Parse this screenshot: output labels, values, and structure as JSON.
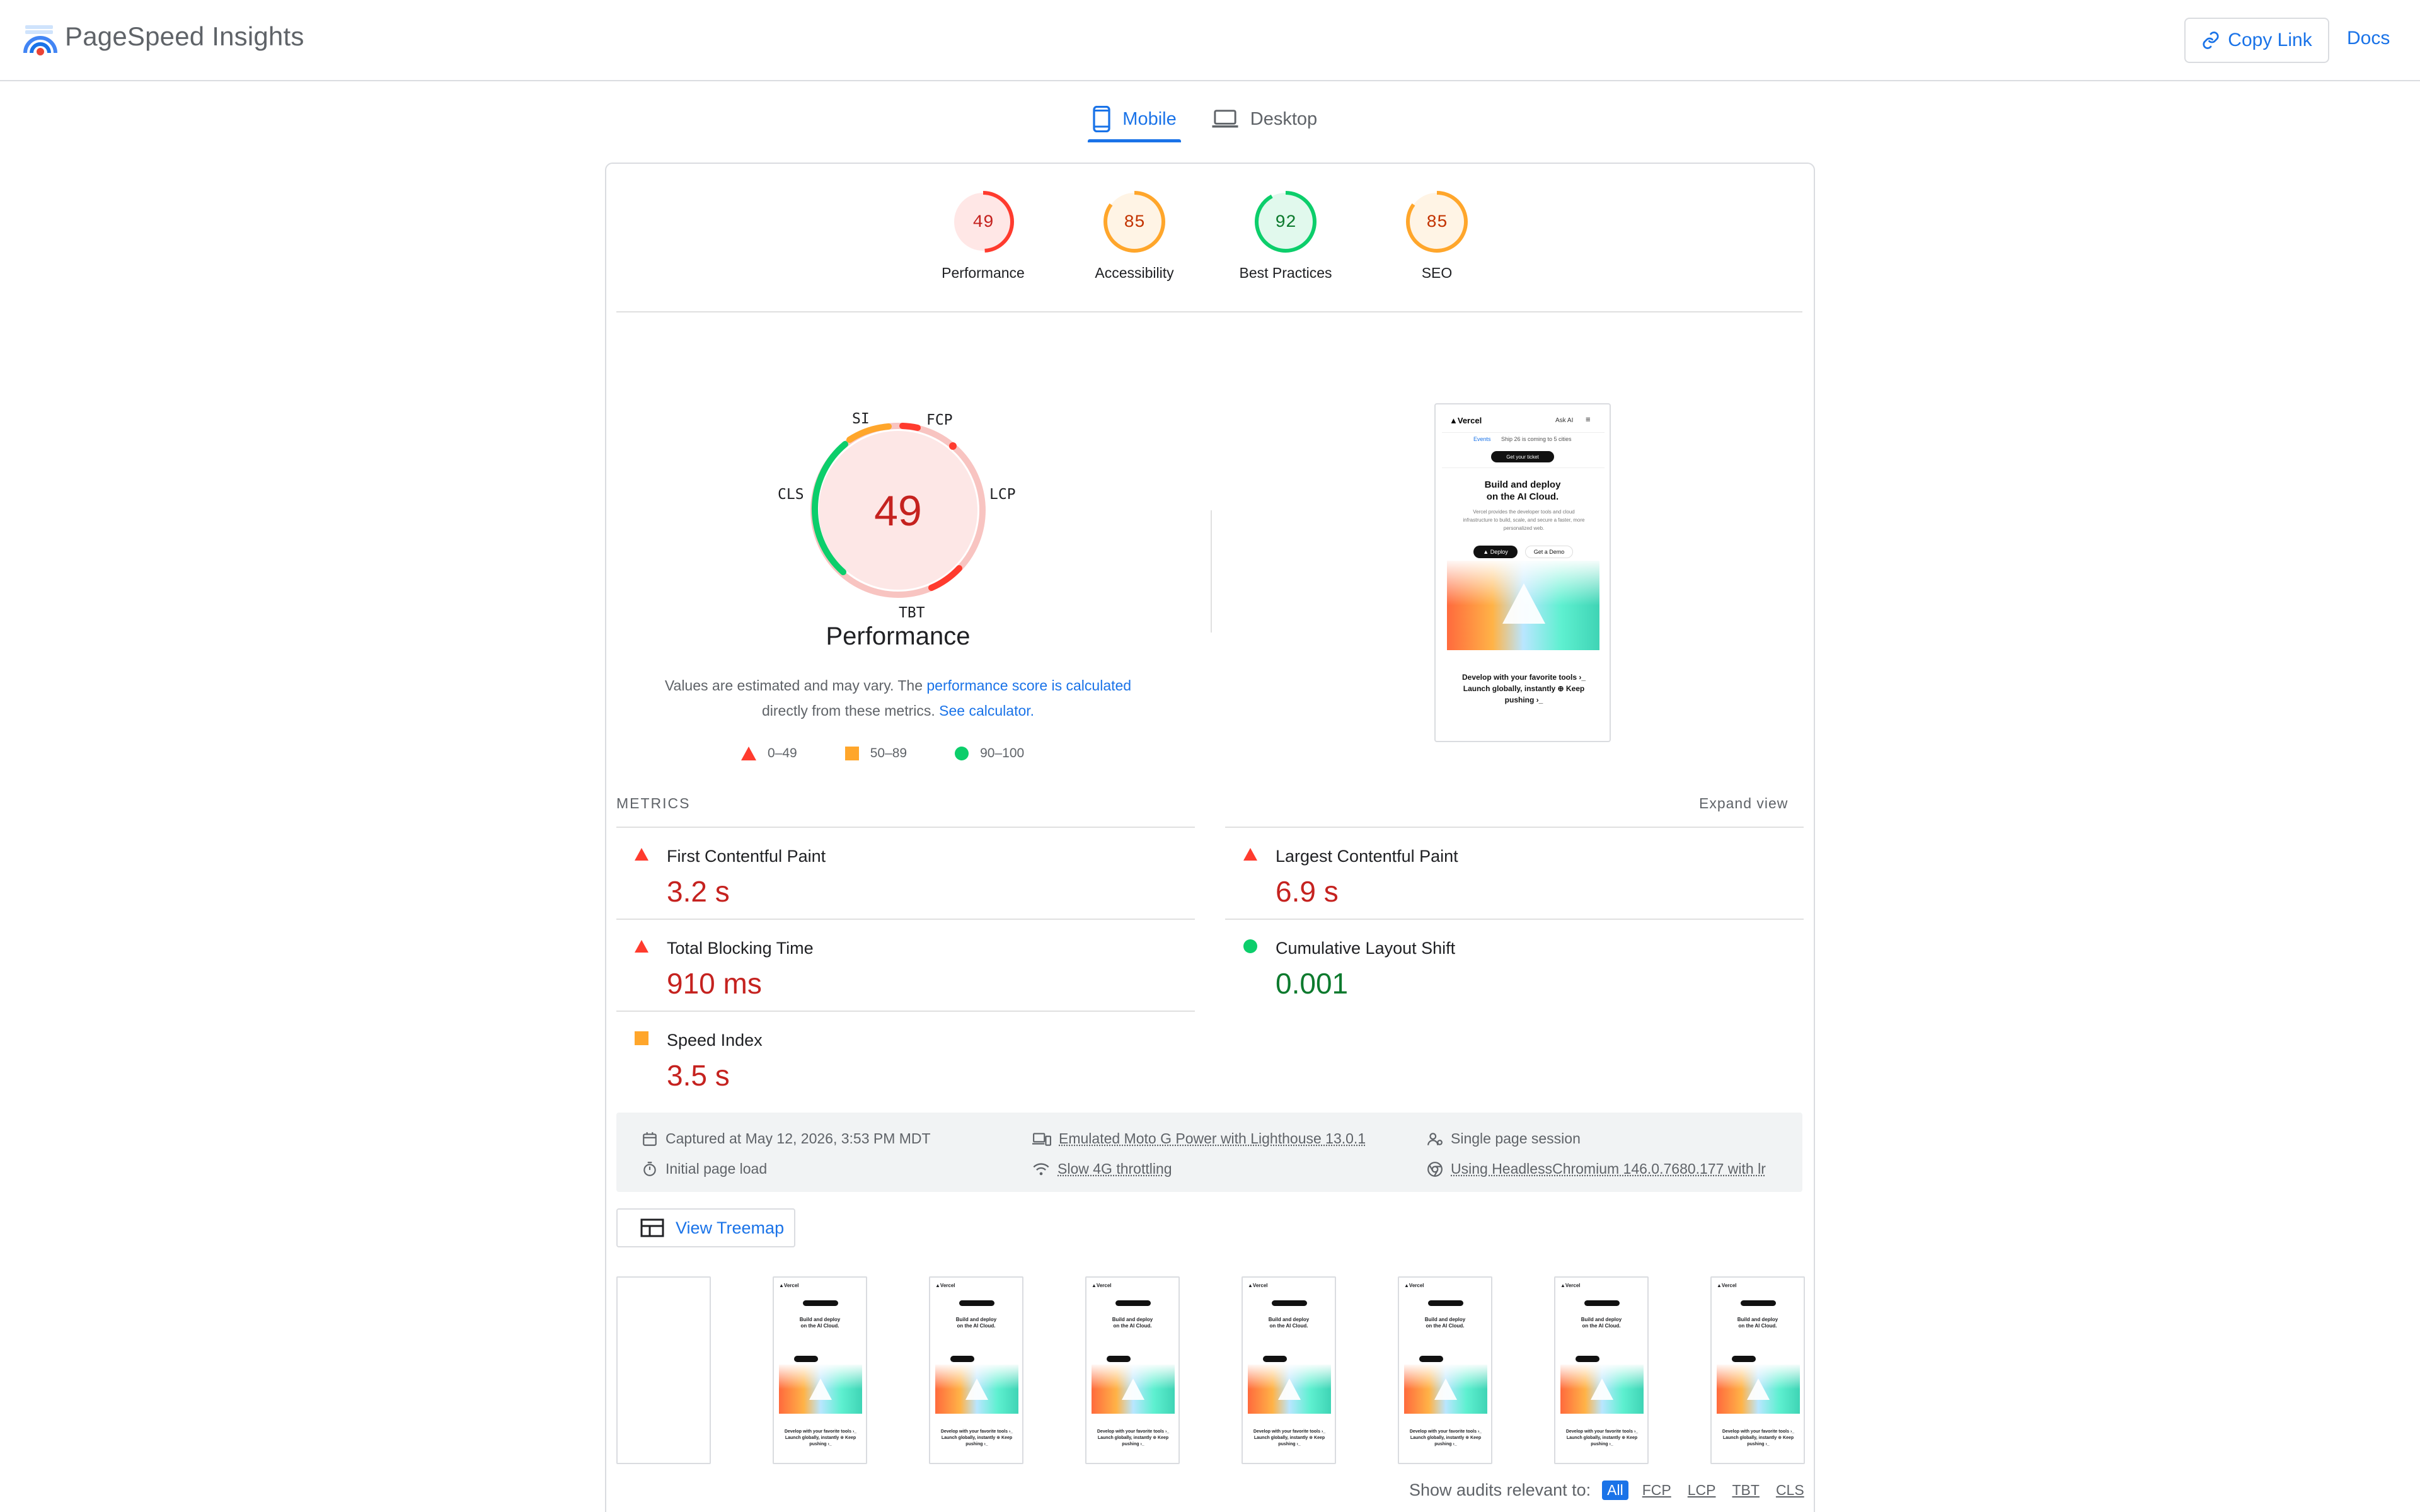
{
  "app": {
    "title": "PageSpeed Insights"
  },
  "header": {
    "copy_link_label": "Copy Link",
    "docs_label": "Docs"
  },
  "tabs": [
    {
      "label": "Mobile",
      "active": true
    },
    {
      "label": "Desktop",
      "active": false
    }
  ],
  "categories": [
    {
      "score": "49",
      "label": "Performance",
      "color": "#ff3b2e",
      "value": 49
    },
    {
      "score": "85",
      "label": "Accessibility",
      "color": "#ffa62b",
      "value": 85
    },
    {
      "score": "92",
      "label": "Best Practices",
      "color": "#0cce6b",
      "value": 92
    },
    {
      "score": "85",
      "label": "SEO",
      "color": "#ffa62b",
      "value": 85
    }
  ],
  "performance": {
    "score": "49",
    "title": "Performance",
    "metric_letters": {
      "si": "SI",
      "fcp": "FCP",
      "lcp": "LCP",
      "tbt": "TBT",
      "cls": "CLS"
    },
    "note_prefix": "Values are estimated and may vary. The ",
    "note_link": "performance score is calculated",
    "note_middle": "directly from these metrics.",
    "note_link2": "See calculator.",
    "legend": [
      {
        "range": "0–49"
      },
      {
        "range": "50–89"
      },
      {
        "range": "90–100"
      }
    ]
  },
  "preview": {
    "brand": "▲Vercel",
    "ask_ai": "Ask AI",
    "events_badge": "Events",
    "events_text": "Ship 26 is coming to 5 cities",
    "ticket_btn": "Get your ticket",
    "headline_1": "Build and deploy",
    "headline_2": "on the AI Cloud.",
    "body_text": "Vercel provides the developer tools and cloud infrastructure to build, scale, and secure a faster, more personalized web.",
    "deploy_btn": "▲ Deploy",
    "demo_btn": "Get a Demo",
    "footer_text": "Develop with your favorite tools ›_ Launch globally, instantly ⊕ Keep pushing ›_"
  },
  "metrics": {
    "header": "METRICS",
    "expand_label": "Expand view",
    "items": [
      {
        "name": "First Contentful Paint",
        "value": "3.2 s",
        "status": "fail"
      },
      {
        "name": "Largest Contentful Paint",
        "value": "6.9 s",
        "status": "fail"
      },
      {
        "name": "Total Blocking Time",
        "value": "910 ms",
        "status": "fail"
      },
      {
        "name": "Cumulative Layout Shift",
        "value": "0.001",
        "status": "pass"
      },
      {
        "name": "Speed Index",
        "value": "3.5 s",
        "status": "average"
      }
    ]
  },
  "runtime": {
    "captured": "Captured at May 12, 2026, 3:53 PM MDT",
    "initial_load": "Initial page load",
    "emulated": "Emulated Moto G Power with Lighthouse 13.0.1",
    "throttling": "Slow 4G throttling",
    "session": "Single page session",
    "browser": "Using HeadlessChromium 146.0.7680.177 with lr"
  },
  "treemap_label": "View Treemap",
  "audits_filter": {
    "label": "Show audits relevant to:",
    "options": [
      "All",
      "FCP",
      "LCP",
      "TBT",
      "CLS"
    ]
  }
}
